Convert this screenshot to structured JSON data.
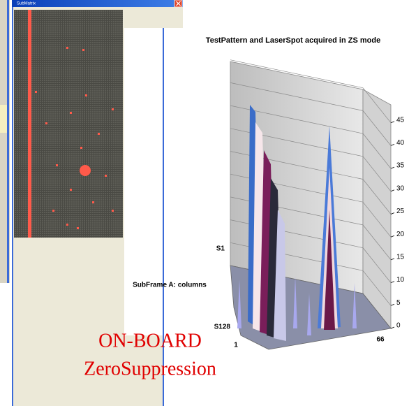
{
  "window": {
    "title": "SubMatrix"
  },
  "surface_plot": {
    "title": "TestPattern and LaserSpot acquired in ZS mode",
    "z_ticks": [
      0,
      5,
      10,
      15,
      20,
      25,
      30,
      35,
      40,
      45
    ],
    "row_labels": [
      "S1",
      "S128"
    ],
    "column_labels": [
      "1",
      "66"
    ],
    "axis_label": "SubFrame A: columns"
  },
  "overlay": {
    "line1": "ON-BOARD",
    "line2": "ZeroSuppression"
  }
}
